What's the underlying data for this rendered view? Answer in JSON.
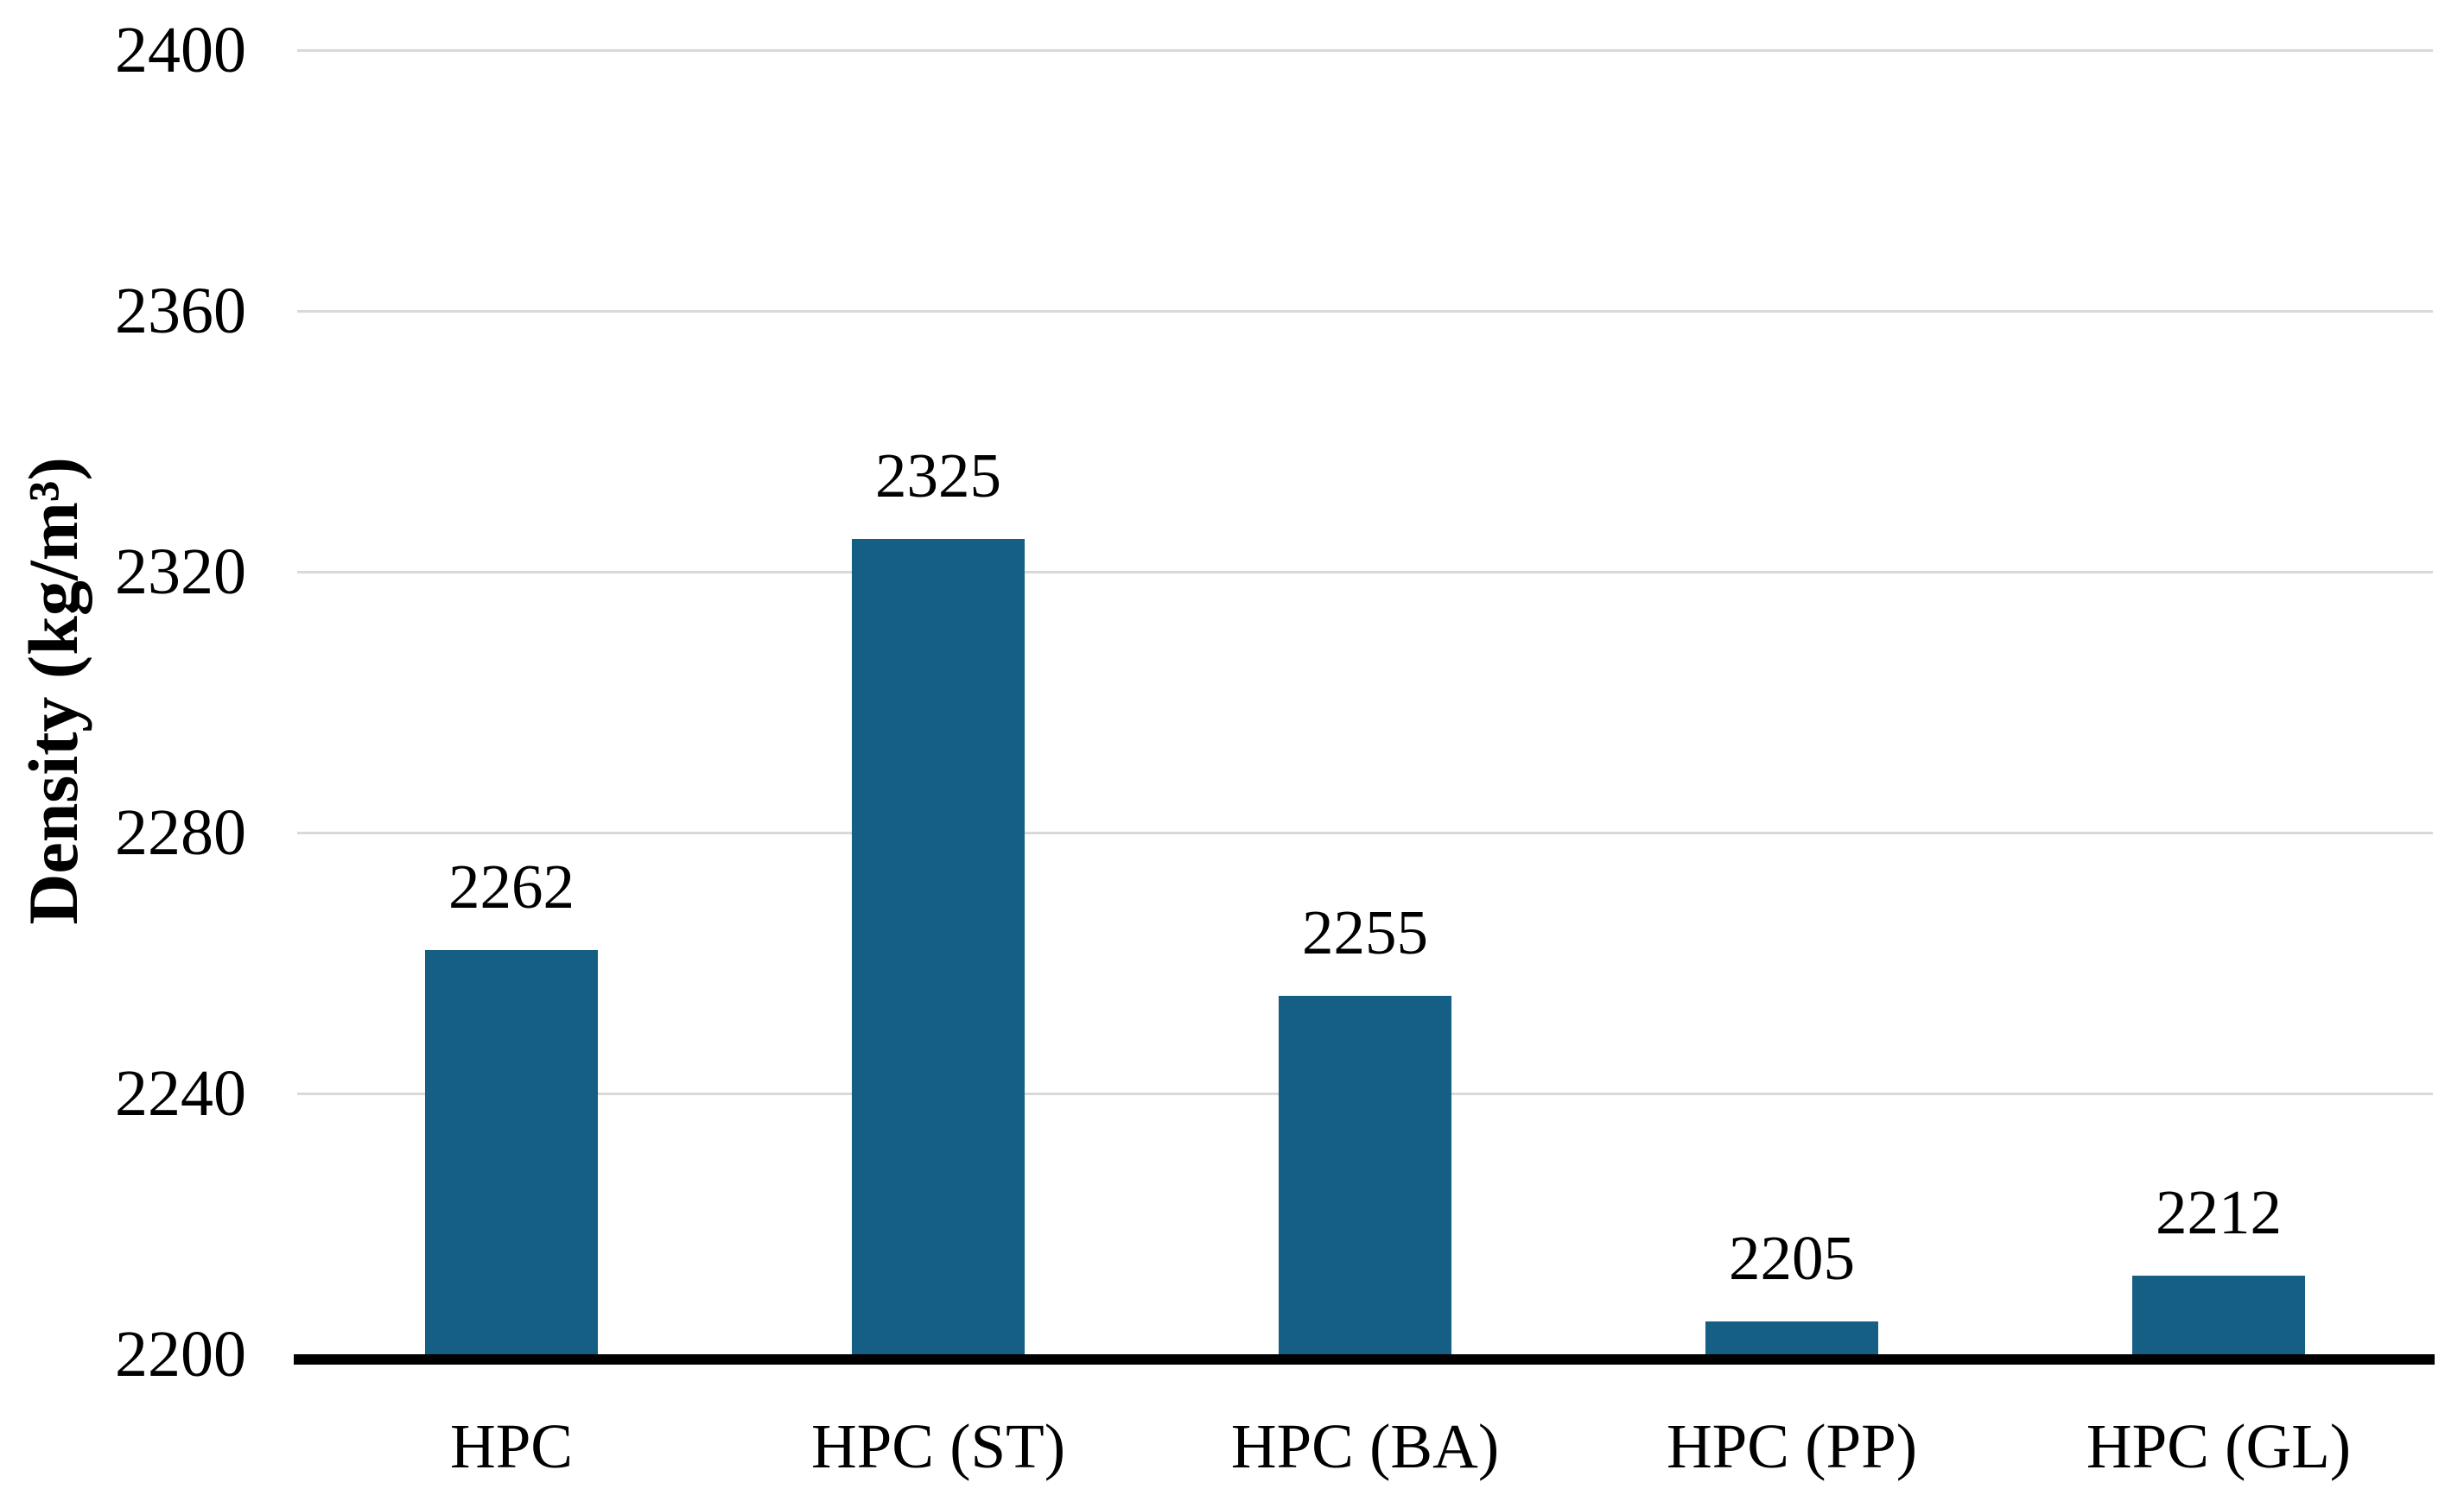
{
  "chart_data": {
    "type": "bar",
    "title": "",
    "categories": [
      "HPC",
      "HPC (ST)",
      "HPC (BA)",
      "HPC (PP)",
      "HPC (GL)"
    ],
    "values": [
      2262,
      2325,
      2255,
      2205,
      2212
    ],
    "data_labels": [
      "2262",
      "2325",
      "2255",
      "2205",
      "2212"
    ],
    "xlabel": "",
    "ylabel": "Density (kg/m³)",
    "ylim": [
      2200,
      2400
    ],
    "yticks": [
      2200,
      2240,
      2280,
      2320,
      2360,
      2400
    ],
    "ytick_labels": [
      "2200",
      "2240",
      "2280",
      "2320",
      "2360",
      "2400"
    ],
    "grid": "horizontal-on",
    "legend": "none",
    "bar_color": "#155F84",
    "gridline_color": "#D9D9D9",
    "axis_line_color": "#000000",
    "text_color": "#000000",
    "background_color": "#FFFFFF"
  }
}
